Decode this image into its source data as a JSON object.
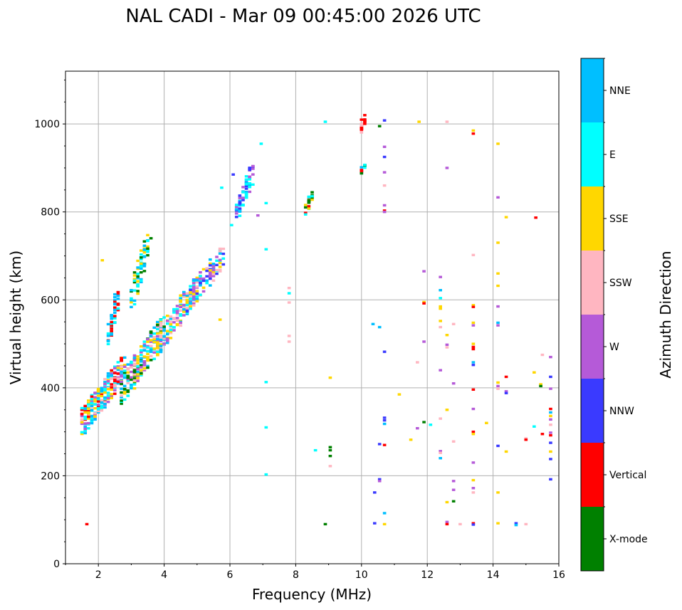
{
  "chart_data": {
    "type": "scatter",
    "title": "NAL CADI - Mar 09 00:45:00 2026 UTC",
    "xlabel": "Frequency (MHz)",
    "ylabel": "Virtual height (km)",
    "xlim": [
      1,
      16
    ],
    "ylim": [
      0,
      1120
    ],
    "xticks": [
      2,
      4,
      6,
      8,
      10,
      12,
      14,
      16
    ],
    "yticks": [
      0,
      200,
      400,
      600,
      800,
      1000
    ],
    "grid": true,
    "colorbar": {
      "label": "Azimuth Direction",
      "categories": [
        {
          "name": "X-mode",
          "color": "#008000"
        },
        {
          "name": "Vertical",
          "color": "#ff0000"
        },
        {
          "name": "NNW",
          "color": "#3a3aff"
        },
        {
          "name": "W",
          "color": "#b55ad8"
        },
        {
          "name": "SSW",
          "color": "#ffb6c1"
        },
        {
          "name": "SSE",
          "color": "#ffd700"
        },
        {
          "name": "E",
          "color": "#00ffff"
        },
        {
          "name": "NNE",
          "color": "#00bfff"
        }
      ]
    },
    "dense_traces": [
      {
        "f0": 1.5,
        "f1": 2.8,
        "h0": 290,
        "h1": 470,
        "categories": [
          "SSE",
          "E",
          "NNE",
          "Vertical",
          "SSW",
          "W"
        ],
        "count": 260
      },
      {
        "f0": 2.3,
        "f1": 2.6,
        "h0": 480,
        "h1": 630,
        "categories": [
          "Vertical",
          "NNE",
          "E"
        ],
        "count": 50
      },
      {
        "f0": 2.7,
        "f1": 4.0,
        "h0": 360,
        "h1": 560,
        "categories": [
          "SSE",
          "E",
          "NNE",
          "SSW",
          "W",
          "X-mode"
        ],
        "count": 240
      },
      {
        "f0": 3.0,
        "f1": 3.6,
        "h0": 560,
        "h1": 770,
        "categories": [
          "X-mode",
          "E",
          "NNE",
          "SSE"
        ],
        "count": 70
      },
      {
        "f0": 3.8,
        "f1": 5.0,
        "h0": 470,
        "h1": 650,
        "categories": [
          "SSW",
          "SSE",
          "E",
          "NNE",
          "W"
        ],
        "count": 150
      },
      {
        "f0": 4.6,
        "f1": 5.8,
        "h0": 560,
        "h1": 720,
        "categories": [
          "NNE",
          "SSW",
          "W",
          "E",
          "SSE",
          "NNW"
        ],
        "count": 110
      },
      {
        "f0": 6.2,
        "f1": 6.7,
        "h0": 770,
        "h1": 910,
        "categories": [
          "NNW",
          "NNE",
          "W",
          "E"
        ],
        "count": 70
      },
      {
        "f0": 8.3,
        "f1": 8.5,
        "h0": 785,
        "h1": 860,
        "categories": [
          "E",
          "X-mode",
          "SSE",
          "Vertical"
        ],
        "count": 22
      },
      {
        "f0": 9.95,
        "f1": 10.1,
        "h0": 975,
        "h1": 1020,
        "categories": [
          "Vertical",
          "SSW"
        ],
        "count": 18
      },
      {
        "f0": 9.95,
        "f1": 10.1,
        "h0": 880,
        "h1": 910,
        "categories": [
          "Vertical",
          "X-mode",
          "NNE",
          "E"
        ],
        "count": 14
      }
    ],
    "points": [
      {
        "f": 1.65,
        "h": 90,
        "c": "Vertical"
      },
      {
        "f": 2.12,
        "h": 690,
        "c": "SSE"
      },
      {
        "f": 6.1,
        "h": 885,
        "c": "NNW"
      },
      {
        "f": 6.05,
        "h": 770,
        "c": "E"
      },
      {
        "f": 5.7,
        "h": 555,
        "c": "SSE"
      },
      {
        "f": 5.75,
        "h": 855,
        "c": "E"
      },
      {
        "f": 6.95,
        "h": 955,
        "c": "E"
      },
      {
        "f": 7.1,
        "h": 715,
        "c": "E"
      },
      {
        "f": 7.1,
        "h": 820,
        "c": "E"
      },
      {
        "f": 7.1,
        "h": 413,
        "c": "E"
      },
      {
        "f": 7.1,
        "h": 310,
        "c": "E"
      },
      {
        "f": 7.1,
        "h": 203,
        "c": "E"
      },
      {
        "f": 6.85,
        "h": 792,
        "c": "W"
      },
      {
        "f": 7.8,
        "h": 627,
        "c": "SSW"
      },
      {
        "f": 7.8,
        "h": 615,
        "c": "E"
      },
      {
        "f": 7.8,
        "h": 594,
        "c": "SSW"
      },
      {
        "f": 7.8,
        "h": 518,
        "c": "SSW"
      },
      {
        "f": 7.8,
        "h": 505,
        "c": "SSW"
      },
      {
        "f": 8.6,
        "h": 258,
        "c": "E"
      },
      {
        "f": 8.9,
        "h": 1005,
        "c": "E"
      },
      {
        "f": 9.05,
        "h": 423,
        "c": "SSE"
      },
      {
        "f": 9.05,
        "h": 265,
        "c": "X-mode"
      },
      {
        "f": 9.05,
        "h": 258,
        "c": "X-mode"
      },
      {
        "f": 9.05,
        "h": 245,
        "c": "X-mode"
      },
      {
        "f": 9.05,
        "h": 222,
        "c": "SSW"
      },
      {
        "f": 8.9,
        "h": 90,
        "c": "X-mode"
      },
      {
        "f": 10.35,
        "h": 545,
        "c": "NNE"
      },
      {
        "f": 10.4,
        "h": 162,
        "c": "NNW"
      },
      {
        "f": 10.4,
        "h": 92,
        "c": "NNW"
      },
      {
        "f": 10.55,
        "h": 995,
        "c": "X-mode"
      },
      {
        "f": 10.55,
        "h": 538,
        "c": "NNE"
      },
      {
        "f": 10.55,
        "h": 272,
        "c": "NNW"
      },
      {
        "f": 10.55,
        "h": 192,
        "c": "NNW"
      },
      {
        "f": 10.55,
        "h": 188,
        "c": "W"
      },
      {
        "f": 10.7,
        "h": 1008,
        "c": "NNW"
      },
      {
        "f": 10.7,
        "h": 948,
        "c": "W"
      },
      {
        "f": 10.7,
        "h": 925,
        "c": "NNW"
      },
      {
        "f": 10.7,
        "h": 890,
        "c": "W"
      },
      {
        "f": 10.7,
        "h": 860,
        "c": "SSW"
      },
      {
        "f": 10.7,
        "h": 815,
        "c": "W"
      },
      {
        "f": 10.7,
        "h": 803,
        "c": "Vertical"
      },
      {
        "f": 10.7,
        "h": 800,
        "c": "W"
      },
      {
        "f": 10.7,
        "h": 482,
        "c": "NNW"
      },
      {
        "f": 10.7,
        "h": 332,
        "c": "NNW"
      },
      {
        "f": 10.7,
        "h": 326,
        "c": "NNW"
      },
      {
        "f": 10.7,
        "h": 318,
        "c": "NNE"
      },
      {
        "f": 10.7,
        "h": 270,
        "c": "Vertical"
      },
      {
        "f": 10.7,
        "h": 115,
        "c": "NNE"
      },
      {
        "f": 10.7,
        "h": 90,
        "c": "SSE"
      },
      {
        "f": 11.15,
        "h": 385,
        "c": "SSE"
      },
      {
        "f": 11.5,
        "h": 282,
        "c": "SSE"
      },
      {
        "f": 11.75,
        "h": 1005,
        "c": "SSE"
      },
      {
        "f": 11.7,
        "h": 458,
        "c": "SSW"
      },
      {
        "f": 11.7,
        "h": 308,
        "c": "W"
      },
      {
        "f": 11.9,
        "h": 665,
        "c": "W"
      },
      {
        "f": 11.9,
        "h": 595,
        "c": "SSE"
      },
      {
        "f": 11.9,
        "h": 592,
        "c": "Vertical"
      },
      {
        "f": 11.9,
        "h": 505,
        "c": "W"
      },
      {
        "f": 11.9,
        "h": 322,
        "c": "X-mode"
      },
      {
        "f": 12.1,
        "h": 316,
        "c": "E"
      },
      {
        "f": 12.4,
        "h": 652,
        "c": "W"
      },
      {
        "f": 12.4,
        "h": 622,
        "c": "NNE"
      },
      {
        "f": 12.4,
        "h": 604,
        "c": "E"
      },
      {
        "f": 12.4,
        "h": 585,
        "c": "SSE"
      },
      {
        "f": 12.4,
        "h": 580,
        "c": "SSE"
      },
      {
        "f": 12.4,
        "h": 552,
        "c": "SSE"
      },
      {
        "f": 12.4,
        "h": 538,
        "c": "SSW"
      },
      {
        "f": 12.4,
        "h": 440,
        "c": "W"
      },
      {
        "f": 12.4,
        "h": 330,
        "c": "SSW"
      },
      {
        "f": 12.4,
        "h": 256,
        "c": "W"
      },
      {
        "f": 12.4,
        "h": 252,
        "c": "SSW"
      },
      {
        "f": 12.4,
        "h": 240,
        "c": "NNE"
      },
      {
        "f": 12.6,
        "h": 1005,
        "c": "SSW"
      },
      {
        "f": 12.6,
        "h": 900,
        "c": "W"
      },
      {
        "f": 12.6,
        "h": 520,
        "c": "SSE"
      },
      {
        "f": 12.6,
        "h": 498,
        "c": "W"
      },
      {
        "f": 12.6,
        "h": 492,
        "c": "SSW"
      },
      {
        "f": 12.6,
        "h": 350,
        "c": "SSE"
      },
      {
        "f": 12.6,
        "h": 140,
        "c": "SSE"
      },
      {
        "f": 12.6,
        "h": 95,
        "c": "W"
      },
      {
        "f": 12.6,
        "h": 90,
        "c": "Vertical"
      },
      {
        "f": 12.8,
        "h": 545,
        "c": "SSW"
      },
      {
        "f": 12.8,
        "h": 410,
        "c": "W"
      },
      {
        "f": 12.8,
        "h": 278,
        "c": "SSW"
      },
      {
        "f": 12.8,
        "h": 188,
        "c": "W"
      },
      {
        "f": 12.8,
        "h": 168,
        "c": "W"
      },
      {
        "f": 12.8,
        "h": 142,
        "c": "X-mode"
      },
      {
        "f": 13.0,
        "h": 90,
        "c": "SSW"
      },
      {
        "f": 13.4,
        "h": 985,
        "c": "SSE"
      },
      {
        "f": 13.4,
        "h": 978,
        "c": "Vertical"
      },
      {
        "f": 13.4,
        "h": 702,
        "c": "SSW"
      },
      {
        "f": 13.4,
        "h": 588,
        "c": "SSE"
      },
      {
        "f": 13.4,
        "h": 584,
        "c": "Vertical"
      },
      {
        "f": 13.4,
        "h": 548,
        "c": "SSE"
      },
      {
        "f": 13.4,
        "h": 542,
        "c": "W"
      },
      {
        "f": 13.4,
        "h": 500,
        "c": "SSE"
      },
      {
        "f": 13.4,
        "h": 493,
        "c": "Vertical"
      },
      {
        "f": 13.4,
        "h": 488,
        "c": "Vertical"
      },
      {
        "f": 13.4,
        "h": 458,
        "c": "NNE"
      },
      {
        "f": 13.4,
        "h": 452,
        "c": "NNW"
      },
      {
        "f": 13.4,
        "h": 396,
        "c": "Vertical"
      },
      {
        "f": 13.4,
        "h": 352,
        "c": "W"
      },
      {
        "f": 13.4,
        "h": 300,
        "c": "Vertical"
      },
      {
        "f": 13.4,
        "h": 295,
        "c": "SSE"
      },
      {
        "f": 13.4,
        "h": 230,
        "c": "W"
      },
      {
        "f": 13.4,
        "h": 190,
        "c": "SSE"
      },
      {
        "f": 13.4,
        "h": 172,
        "c": "W"
      },
      {
        "f": 13.4,
        "h": 162,
        "c": "SSW"
      },
      {
        "f": 13.4,
        "h": 92,
        "c": "Vertical"
      },
      {
        "f": 13.4,
        "h": 89,
        "c": "NNW"
      },
      {
        "f": 13.8,
        "h": 320,
        "c": "SSE"
      },
      {
        "f": 14.15,
        "h": 955,
        "c": "SSE"
      },
      {
        "f": 14.15,
        "h": 833,
        "c": "W"
      },
      {
        "f": 14.15,
        "h": 730,
        "c": "SSE"
      },
      {
        "f": 14.15,
        "h": 660,
        "c": "SSE"
      },
      {
        "f": 14.15,
        "h": 632,
        "c": "SSE"
      },
      {
        "f": 14.15,
        "h": 585,
        "c": "W"
      },
      {
        "f": 14.15,
        "h": 548,
        "c": "NNE"
      },
      {
        "f": 14.15,
        "h": 542,
        "c": "W"
      },
      {
        "f": 14.15,
        "h": 412,
        "c": "SSE"
      },
      {
        "f": 14.15,
        "h": 404,
        "c": "W"
      },
      {
        "f": 14.15,
        "h": 398,
        "c": "SSW"
      },
      {
        "f": 14.15,
        "h": 268,
        "c": "NNW"
      },
      {
        "f": 14.15,
        "h": 162,
        "c": "SSE"
      },
      {
        "f": 14.15,
        "h": 92,
        "c": "SSE"
      },
      {
        "f": 14.4,
        "h": 788,
        "c": "SSE"
      },
      {
        "f": 14.4,
        "h": 425,
        "c": "Vertical"
      },
      {
        "f": 14.4,
        "h": 392,
        "c": "W"
      },
      {
        "f": 14.4,
        "h": 388,
        "c": "NNW"
      },
      {
        "f": 14.4,
        "h": 255,
        "c": "SSE"
      },
      {
        "f": 14.7,
        "h": 92,
        "c": "NNW"
      },
      {
        "f": 14.7,
        "h": 88,
        "c": "NNE"
      },
      {
        "f": 15.0,
        "h": 90,
        "c": "SSW"
      },
      {
        "f": 15.0,
        "h": 285,
        "c": "SSW"
      },
      {
        "f": 15.0,
        "h": 282,
        "c": "Vertical"
      },
      {
        "f": 15.25,
        "h": 312,
        "c": "E"
      },
      {
        "f": 15.25,
        "h": 435,
        "c": "SSE"
      },
      {
        "f": 15.3,
        "h": 787,
        "c": "Vertical"
      },
      {
        "f": 15.45,
        "h": 408,
        "c": "SSE"
      },
      {
        "f": 15.45,
        "h": 404,
        "c": "X-mode"
      },
      {
        "f": 15.5,
        "h": 475,
        "c": "SSW"
      },
      {
        "f": 15.5,
        "h": 295,
        "c": "Vertical"
      },
      {
        "f": 15.75,
        "h": 470,
        "c": "W"
      },
      {
        "f": 15.75,
        "h": 425,
        "c": "NNW"
      },
      {
        "f": 15.75,
        "h": 398,
        "c": "W"
      },
      {
        "f": 15.75,
        "h": 352,
        "c": "Vertical"
      },
      {
        "f": 15.75,
        "h": 344,
        "c": "NNE"
      },
      {
        "f": 15.75,
        "h": 336,
        "c": "SSE"
      },
      {
        "f": 15.75,
        "h": 328,
        "c": "W"
      },
      {
        "f": 15.75,
        "h": 316,
        "c": "SSW"
      },
      {
        "f": 15.75,
        "h": 298,
        "c": "W"
      },
      {
        "f": 15.75,
        "h": 292,
        "c": "Vertical"
      },
      {
        "f": 15.75,
        "h": 275,
        "c": "NNW"
      },
      {
        "f": 15.75,
        "h": 255,
        "c": "SSE"
      },
      {
        "f": 15.75,
        "h": 238,
        "c": "NNW"
      },
      {
        "f": 15.75,
        "h": 192,
        "c": "NNW"
      }
    ]
  }
}
